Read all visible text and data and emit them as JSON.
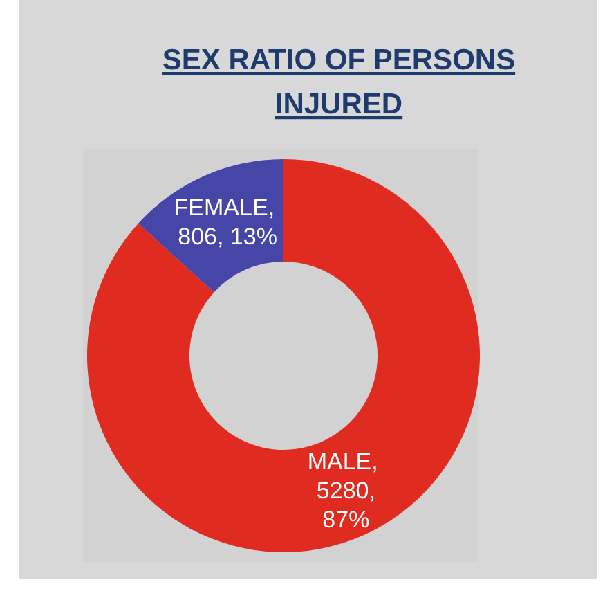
{
  "chart_data": {
    "type": "donut",
    "title": "SEX RATIO OF PERSONS INJURED",
    "categories": [
      "MALE",
      "FEMALE"
    ],
    "values": [
      5280,
      806
    ],
    "colors": [
      "#e02b20",
      "#4646a8"
    ],
    "value_labels": [
      ", 5280, 87%",
      ", 806, 13%"
    ]
  }
}
